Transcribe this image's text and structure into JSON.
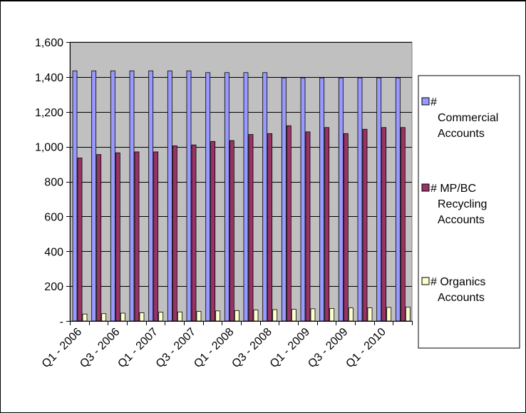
{
  "chart_data": {
    "type": "bar",
    "title": "",
    "xlabel": "",
    "ylabel": "",
    "ylim": [
      0,
      1600
    ],
    "yticks": [
      0,
      200,
      400,
      600,
      800,
      1000,
      1200,
      1400,
      1600
    ],
    "ytick_labels": [
      "-",
      "200",
      "400",
      "600",
      "800",
      "1,000",
      "1,200",
      "1,400",
      "1,600"
    ],
    "grid": true,
    "legend_placement": "right",
    "plot_background": "#c0c0c0",
    "categories": [
      "Q1 - 2006",
      "Q2 - 2006",
      "Q3 - 2006",
      "Q4 - 2006",
      "Q1 - 2007",
      "Q2 - 2007",
      "Q3 - 2007",
      "Q4 - 2007",
      "Q1 - 2008",
      "Q2 - 2008",
      "Q3 - 2008",
      "Q4 - 2008",
      "Q1 - 2009",
      "Q2 - 2009",
      "Q3 - 2009",
      "Q4 - 2009",
      "Q1 - 2010",
      "Q2 - 2010"
    ],
    "xtick_labels_shown": [
      "Q1 - 2006",
      "Q3 - 2006",
      "Q1 - 2007",
      "Q3 - 2007",
      "Q1 - 2008",
      "Q3 - 2008",
      "Q1 - 2009",
      "Q3 - 2009",
      "Q1 - 2010"
    ],
    "series": [
      {
        "name": "# Commercial Accounts",
        "legend_lines": [
          "#",
          "Commercial",
          "Accounts"
        ],
        "color": "#9999ff",
        "values": [
          1435,
          1435,
          1435,
          1435,
          1435,
          1435,
          1435,
          1425,
          1425,
          1425,
          1425,
          1395,
          1395,
          1395,
          1395,
          1395,
          1395,
          1395
        ]
      },
      {
        "name": "# MP/BC Recycling Accounts",
        "legend_lines": [
          "# MP/BC",
          "Recycling",
          "Accounts"
        ],
        "color": "#993366",
        "values": [
          935,
          955,
          965,
          970,
          970,
          1005,
          1010,
          1030,
          1035,
          1070,
          1075,
          1120,
          1085,
          1110,
          1075,
          1100,
          1110,
          1110
        ]
      },
      {
        "name": "# Organics Accounts",
        "legend_lines": [
          "# Organics",
          "Accounts"
        ],
        "color": "#ffffcc",
        "values": [
          40,
          42,
          45,
          47,
          50,
          52,
          55,
          58,
          60,
          63,
          65,
          67,
          70,
          72,
          75,
          76,
          78,
          80
        ]
      }
    ]
  }
}
